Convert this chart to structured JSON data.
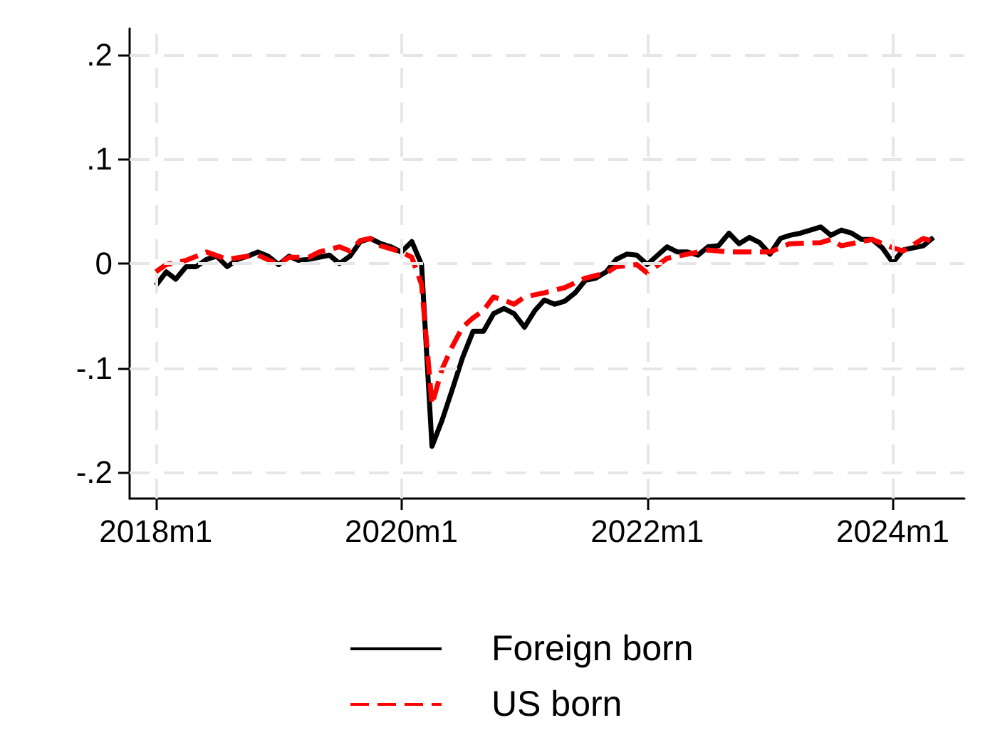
{
  "chart_data": {
    "type": "line",
    "x": [
      "2018-01",
      "2018-02",
      "2018-03",
      "2018-04",
      "2018-05",
      "2018-06",
      "2018-07",
      "2018-08",
      "2018-09",
      "2018-10",
      "2018-11",
      "2018-12",
      "2019-01",
      "2019-02",
      "2019-03",
      "2019-04",
      "2019-05",
      "2019-06",
      "2019-07",
      "2019-08",
      "2019-09",
      "2019-10",
      "2019-11",
      "2019-12",
      "2020-01",
      "2020-02",
      "2020-03",
      "2020-04",
      "2020-05",
      "2020-06",
      "2020-07",
      "2020-08",
      "2020-09",
      "2020-10",
      "2020-11",
      "2020-12",
      "2021-01",
      "2021-02",
      "2021-03",
      "2021-04",
      "2021-05",
      "2021-06",
      "2021-07",
      "2021-08",
      "2021-09",
      "2021-10",
      "2021-11",
      "2021-12",
      "2022-01",
      "2022-02",
      "2022-03",
      "2022-04",
      "2022-05",
      "2022-06",
      "2022-07",
      "2022-08",
      "2022-09",
      "2022-10",
      "2022-11",
      "2022-12",
      "2023-01",
      "2023-02",
      "2023-03",
      "2023-04",
      "2023-05",
      "2023-06",
      "2023-07",
      "2023-08",
      "2023-09",
      "2023-10",
      "2023-11",
      "2023-12",
      "2024-01",
      "2024-02",
      "2024-03",
      "2024-04",
      "2024-05"
    ],
    "series": [
      {
        "name": "Foreign born",
        "color": "#000000",
        "line_style": "solid",
        "values": [
          -0.021,
          -0.008,
          -0.015,
          -0.003,
          -0.003,
          0.004,
          0.007,
          -0.003,
          0.004,
          0.007,
          0.011,
          0.007,
          -0.001,
          0.007,
          0.003,
          0.004,
          0.006,
          0.008,
          0.0,
          0.007,
          0.021,
          0.024,
          0.019,
          0.016,
          0.011,
          0.021,
          -0.001,
          -0.175,
          -0.15,
          -0.12,
          -0.09,
          -0.065,
          -0.065,
          -0.048,
          -0.043,
          -0.048,
          -0.061,
          -0.045,
          -0.035,
          -0.039,
          -0.036,
          -0.028,
          -0.016,
          -0.014,
          -0.008,
          0.004,
          0.009,
          0.008,
          -0.001,
          0.008,
          0.016,
          0.011,
          0.011,
          0.008,
          0.016,
          0.017,
          0.029,
          0.019,
          0.025,
          0.02,
          0.009,
          0.024,
          0.027,
          0.029,
          0.032,
          0.035,
          0.027,
          0.032,
          0.029,
          0.023,
          0.023,
          0.015,
          0.001,
          0.013,
          0.015,
          0.017,
          0.025
        ]
      },
      {
        "name": "US born",
        "color": "#ff0000",
        "line_style": "dashed",
        "x": [
          "2018-01",
          "2018-02",
          "2018-04",
          "2018-06",
          "2018-08",
          "2018-10",
          "2018-11",
          "2019-01",
          "2019-02",
          "2019-04",
          "2019-05",
          "2019-07",
          "2019-08",
          "2019-09",
          "2019-10",
          "2019-11",
          "2020-01",
          "2020-02",
          "2020-03",
          "2020-04",
          "2020-05",
          "2020-06",
          "2020-07",
          "2020-08",
          "2020-09",
          "2020-10",
          "2020-11",
          "2020-12",
          "2021-01",
          "2021-03",
          "2021-05",
          "2021-07",
          "2021-09",
          "2021-10",
          "2021-12",
          "2022-01",
          "2022-03",
          "2022-04",
          "2022-07",
          "2022-09",
          "2022-11",
          "2023-01",
          "2023-03",
          "2023-06",
          "2023-07",
          "2023-08",
          "2023-11",
          "2024-01",
          "2024-02",
          "2024-04",
          "2024-05"
        ],
        "values": [
          -0.008,
          -0.001,
          0.003,
          0.011,
          0.004,
          0.007,
          0.008,
          -0.001,
          0.006,
          0.006,
          0.011,
          0.016,
          0.012,
          0.022,
          0.024,
          0.017,
          0.011,
          0.006,
          -0.02,
          -0.135,
          -0.101,
          -0.079,
          -0.061,
          -0.052,
          -0.045,
          -0.032,
          -0.035,
          -0.039,
          -0.032,
          -0.028,
          -0.023,
          -0.014,
          -0.009,
          -0.003,
          -0.001,
          -0.009,
          0.005,
          0.007,
          0.013,
          0.011,
          0.011,
          0.011,
          0.019,
          0.02,
          0.023,
          0.017,
          0.023,
          0.015,
          0.012,
          0.024,
          0.021
        ]
      }
    ],
    "xlim": [
      "2017-10-15",
      "2024-08-01"
    ],
    "xticks": [
      {
        "value": "2018-01",
        "label": "2018m1"
      },
      {
        "value": "2020-01",
        "label": "2020m1"
      },
      {
        "value": "2022-01",
        "label": "2022m1"
      },
      {
        "value": "2024-01",
        "label": "2024m1"
      }
    ],
    "ylim": [
      -0.225,
      0.225
    ],
    "yticks": [
      {
        "value": -0.2,
        "label": "-.2"
      },
      {
        "value": -0.1,
        "label": "-.1"
      },
      {
        "value": 0,
        "label": "0"
      },
      {
        "value": 0.1,
        "label": ".1"
      },
      {
        "value": 0.2,
        "label": ".2"
      }
    ],
    "grid": true,
    "legend": "bottom"
  }
}
